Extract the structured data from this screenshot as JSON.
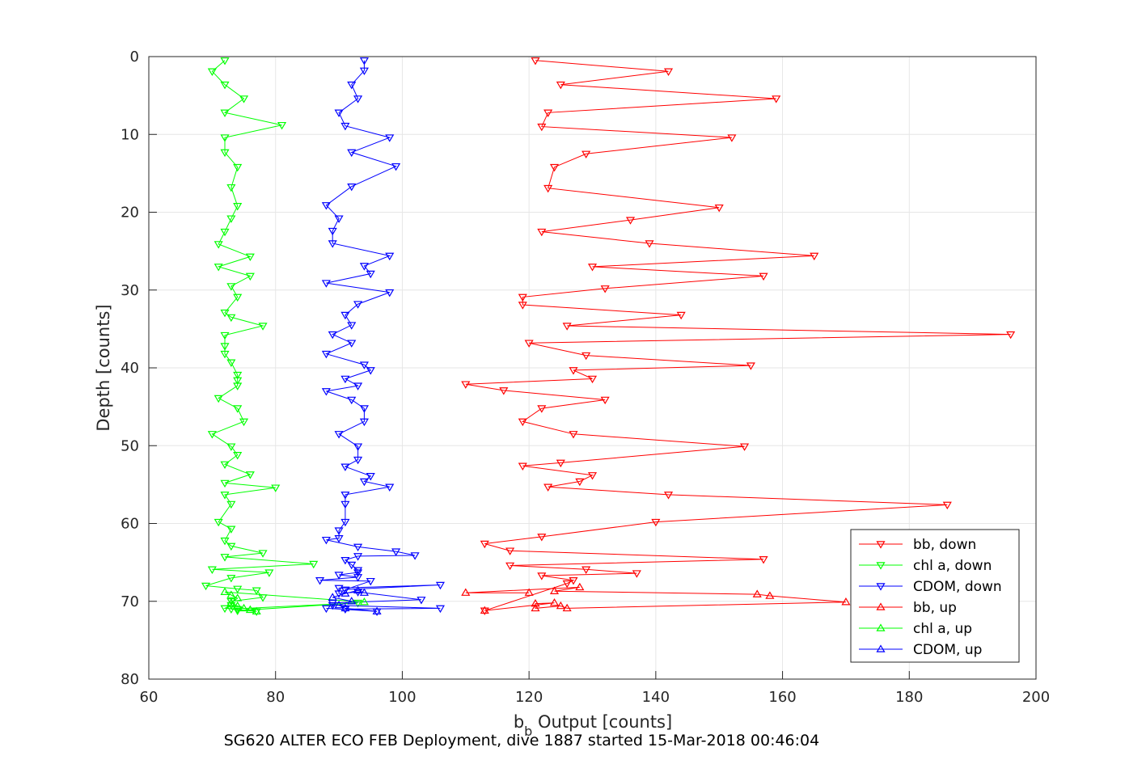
{
  "footer_text": "SG620 ALTER ECO FEB Deployment, dive 1887 started 15-Mar-2018 00:46:04",
  "chart_data": {
    "type": "line",
    "xlabel_main": "b",
    "xlabel_sub": "b",
    "xlabel_rest": " Output [counts]",
    "ylabel": "Depth [counts]",
    "xlim": [
      60,
      200
    ],
    "ylim": [
      0,
      80
    ],
    "y_reversed": true,
    "xticks": [
      60,
      80,
      100,
      120,
      140,
      160,
      180,
      200
    ],
    "yticks": [
      0,
      10,
      20,
      30,
      40,
      50,
      60,
      70,
      80
    ],
    "grid": true,
    "legend_position": "bottom-right",
    "series": [
      {
        "name": "bb, down",
        "color": "#ff0000",
        "marker": "down",
        "x": [
          121,
          142,
          125,
          159,
          123,
          122,
          152,
          129,
          124,
          123,
          150,
          136,
          122,
          139,
          165,
          130,
          157,
          132,
          119,
          119,
          144,
          126,
          196,
          120,
          129,
          155,
          127,
          130,
          110,
          116,
          132,
          122,
          119,
          127,
          154,
          125,
          119,
          130,
          128,
          123,
          142,
          186,
          140,
          122,
          113,
          117,
          157,
          117,
          129,
          137,
          122,
          127,
          126,
          113
        ],
        "y": [
          0.5,
          1.9,
          3.6,
          5.4,
          7.2,
          9.0,
          10.4,
          12.5,
          14.2,
          16.9,
          19.4,
          21.0,
          22.5,
          24.0,
          25.6,
          27.0,
          28.2,
          29.8,
          30.9,
          31.9,
          33.2,
          34.6,
          35.7,
          36.8,
          38.4,
          39.7,
          40.3,
          41.4,
          42.1,
          42.9,
          44.1,
          45.2,
          46.9,
          48.5,
          50.1,
          52.2,
          52.6,
          53.8,
          54.6,
          55.3,
          56.3,
          57.6,
          59.8,
          61.7,
          62.6,
          63.5,
          64.6,
          65.4,
          65.9,
          66.4,
          66.7,
          67.3,
          67.7,
          71.2
        ]
      },
      {
        "name": "chl a, down",
        "color": "#00ff00",
        "marker": "down",
        "x": [
          72,
          70,
          72,
          75,
          72,
          81,
          72,
          72,
          74,
          73,
          74,
          73,
          72,
          71,
          76,
          71,
          76,
          73,
          74,
          72,
          73,
          78,
          72,
          72,
          72,
          73,
          74,
          74,
          74,
          71,
          74,
          75,
          70,
          73,
          74,
          72,
          76,
          72,
          80,
          72,
          73,
          71,
          73,
          72,
          73,
          78,
          72,
          86,
          70,
          79,
          73,
          69,
          74,
          77,
          78,
          73,
          73,
          72,
          74,
          74,
          93,
          73,
          77
        ],
        "y": [
          0.5,
          1.9,
          3.6,
          5.4,
          7.2,
          8.8,
          10.4,
          12.3,
          14.2,
          16.8,
          19.2,
          20.8,
          22.5,
          24.1,
          25.7,
          27.0,
          28.2,
          29.5,
          30.9,
          32.9,
          33.5,
          34.6,
          35.8,
          37.2,
          38.2,
          39.3,
          40.9,
          41.6,
          42.3,
          43.9,
          45.2,
          46.9,
          48.5,
          50.1,
          51.2,
          52.4,
          53.7,
          54.8,
          55.4,
          56.3,
          57.5,
          59.8,
          60.7,
          62.2,
          62.9,
          63.8,
          64.3,
          65.2,
          65.9,
          66.3,
          67.0,
          68.0,
          68.4,
          68.6,
          69.5,
          70.0,
          70.5,
          70.9,
          71.0,
          71.2,
          70.2,
          71.0,
          71.3
        ]
      },
      {
        "name": "CDOM, down",
        "color": "#0000ff",
        "marker": "down",
        "x": [
          94,
          94,
          92,
          93,
          90,
          91,
          98,
          92,
          99,
          92,
          88,
          90,
          89,
          89,
          98,
          94,
          95,
          88,
          98,
          93,
          91,
          92,
          89,
          92,
          88,
          94,
          95,
          91,
          93,
          88,
          92,
          94,
          94,
          90,
          93,
          93,
          91,
          95,
          94,
          98,
          91,
          91,
          91,
          90,
          90,
          88,
          93,
          99,
          102,
          93,
          91,
          92,
          93,
          93,
          90,
          93,
          87,
          95,
          91,
          106,
          90,
          90,
          93,
          103,
          89,
          89,
          106,
          91,
          96,
          88
        ],
        "y": [
          0.5,
          1.8,
          3.6,
          5.4,
          7.2,
          8.9,
          10.4,
          12.3,
          14.1,
          16.7,
          19.1,
          20.8,
          22.4,
          24.0,
          25.6,
          26.9,
          27.9,
          29.1,
          30.3,
          31.8,
          33.2,
          34.5,
          35.7,
          36.8,
          38.2,
          39.6,
          40.3,
          41.4,
          42.3,
          43.0,
          44.1,
          45.2,
          46.9,
          48.5,
          50.1,
          51.8,
          52.7,
          53.9,
          54.6,
          55.3,
          56.3,
          57.5,
          59.8,
          60.9,
          61.9,
          62.1,
          63.0,
          63.6,
          64.1,
          64.2,
          64.7,
          65.3,
          66.0,
          66.3,
          66.6,
          66.9,
          67.3,
          67.4,
          68.5,
          67.9,
          68.3,
          69.0,
          68.8,
          69.8,
          70.2,
          70.5,
          70.9,
          71.0,
          71.3,
          70.9
        ]
      },
      {
        "name": "bb, up",
        "color": "#ff0000",
        "marker": "up",
        "x": [
          113,
          124,
          121,
          121,
          125,
          126,
          170,
          158,
          156,
          124,
          128,
          110,
          120
        ],
        "y": [
          71.2,
          70.2,
          70.3,
          70.9,
          70.6,
          70.9,
          70.1,
          69.3,
          69.1,
          68.7,
          68.2,
          68.9,
          68.9
        ]
      },
      {
        "name": "chl a, up",
        "color": "#00ff00",
        "marker": "up",
        "x": [
          77,
          76,
          75,
          74,
          73,
          74,
          73,
          72,
          94
        ],
        "y": [
          71.3,
          71.1,
          70.9,
          70.6,
          70.2,
          69.6,
          69.2,
          68.8,
          70.1
        ]
      },
      {
        "name": "CDOM, up",
        "color": "#0000ff",
        "marker": "up",
        "x": [
          96,
          91,
          90,
          92,
          89,
          91,
          93,
          94
        ],
        "y": [
          71.3,
          70.9,
          70.5,
          70.0,
          69.5,
          69.0,
          68.6,
          68.9
        ]
      }
    ]
  }
}
